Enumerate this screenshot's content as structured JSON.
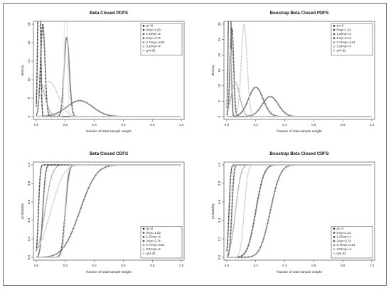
{
  "chart_data": [
    {
      "type": "line",
      "title": "Beta Closed PDFS",
      "xlabel": "fraction of total sample weight",
      "ylabel": "density",
      "xlim": [
        0,
        1
      ],
      "ylim": [
        0,
        25
      ],
      "xticks": [
        "0.0",
        "0.2",
        "0.4",
        "0.6",
        "0.8",
        "1.0"
      ],
      "yticks": [
        "0",
        "5",
        "10",
        "15",
        "20",
        "25"
      ],
      "legend_position": "top-right",
      "series": [
        {
          "name": "q<=0",
          "dist": "pdf",
          "mean": 0.02,
          "sd": 0.008,
          "peak": 60,
          "color": "#222222",
          "width": 1.4
        },
        {
          "name": "0<q<=1.23",
          "dist": "pdf",
          "mean": 0.045,
          "sd": 0.015,
          "peak": 25,
          "color": "#4a4a4a",
          "width": 1.6
        },
        {
          "name": "1.23<q<=2",
          "dist": "pdf",
          "mean": 0.21,
          "sd": 0.018,
          "peak": 21.5,
          "color": "#555555",
          "width": 1.8
        },
        {
          "name": "2<q<=2.74",
          "dist": "pdf",
          "mean": 0.3,
          "sd": 0.09,
          "peak": 4.3,
          "color": "#5a5a5a",
          "width": 1.8
        },
        {
          "name": "2.74<q<=3.24",
          "dist": "pdf",
          "mean": 0.015,
          "sd": 0.04,
          "peak": 10.5,
          "color": "#999999",
          "width": 1.4
        },
        {
          "name": "3.24<q<=4",
          "dist": "pdf",
          "mean": 0.09,
          "sd": 0.06,
          "peak": 9.5,
          "color": "#cccccc",
          "width": 1.6
        },
        {
          "name": "q>4.32",
          "dist": "pdf",
          "mean": 0.205,
          "sd": 0.008,
          "peak": 60,
          "color": "#e0e0e0",
          "width": 1.4
        }
      ]
    },
    {
      "type": "line",
      "title": "Boostrap Beta Closed PDFS",
      "xlabel": "fraction of total sample weight",
      "ylabel": "density",
      "xlim": [
        0,
        1
      ],
      "ylim": [
        0,
        30
      ],
      "xticks": [
        "0.0",
        "0.2",
        "0.4",
        "0.6",
        "0.8",
        "1.0"
      ],
      "yticks": [
        "0",
        "5",
        "10",
        "15",
        "20",
        "25",
        "30"
      ],
      "legend_position": "top-right",
      "series": [
        {
          "name": "q<=0",
          "dist": "pdf",
          "mean": 0.02,
          "sd": 0.008,
          "peak": 60,
          "color": "#222222",
          "width": 1.4
        },
        {
          "name": "0<q<=1.23",
          "dist": "pdf",
          "mean": 0.035,
          "sd": 0.012,
          "peak": 29,
          "color": "#4a4a4a",
          "width": 1.6
        },
        {
          "name": "1.23<q<=2",
          "dist": "pdf",
          "mean": 0.2,
          "sd": 0.05,
          "peak": 9.5,
          "color": "#4f4f4f",
          "width": 1.8
        },
        {
          "name": "2<q<=2.74",
          "dist": "pdf",
          "mean": 0.3,
          "sd": 0.055,
          "peak": 6.5,
          "color": "#5a5a5a",
          "width": 1.8
        },
        {
          "name": "2.74<q<=3.24",
          "dist": "pdf",
          "mean": 0.06,
          "sd": 0.03,
          "peak": 11,
          "color": "#999999",
          "width": 1.4
        },
        {
          "name": "3.24<q<=4",
          "dist": "pdf",
          "mean": 0.12,
          "sd": 0.02,
          "peak": 30,
          "color": "#cccccc",
          "width": 1.6
        },
        {
          "name": "q>4.32",
          "dist": "pdf",
          "mean": 0.025,
          "sd": 0.012,
          "peak": 22,
          "color": "#e0e0e0",
          "width": 1.4
        }
      ]
    },
    {
      "type": "line",
      "title": "Beta Closed CDFS",
      "xlabel": "fraction of total sample weight",
      "ylabel": "probability",
      "xlim": [
        0,
        1
      ],
      "ylim": [
        0,
        1
      ],
      "xticks": [
        "0.0",
        "0.2",
        "0.4",
        "0.6",
        "0.8",
        "1.0"
      ],
      "yticks": [
        "0.0",
        "0.2",
        "0.4",
        "0.6",
        "0.8",
        "1.0"
      ],
      "legend_position": "bottom-right",
      "series": [
        {
          "name": "q<=0",
          "dist": "cdf",
          "mean": 0.015,
          "sd": 0.01,
          "color": "#222222",
          "width": 1.4
        },
        {
          "name": "0<q<=1.23",
          "dist": "cdf",
          "mean": 0.045,
          "sd": 0.015,
          "color": "#4a4a4a",
          "width": 1.6
        },
        {
          "name": "1.23<q<=2",
          "dist": "cdf",
          "mean": 0.2,
          "sd": 0.02,
          "color": "#444444",
          "width": 1.8
        },
        {
          "name": "2<q<=2.74",
          "dist": "cdf",
          "mean": 0.3,
          "sd": 0.09,
          "color": "#5a5a5a",
          "width": 1.8
        },
        {
          "name": "2.74<q<=3.24",
          "dist": "cdf",
          "mean": 0.06,
          "sd": 0.04,
          "color": "#999999",
          "width": 1.4
        },
        {
          "name": "3.24<q<=4",
          "dist": "cdf",
          "mean": 0.1,
          "sd": 0.07,
          "color": "#cccccc",
          "width": 1.6
        },
        {
          "name": "q>4.32",
          "dist": "cdf",
          "mean": 0.2,
          "sd": 0.012,
          "color": "#e0e0e0",
          "width": 1.4
        }
      ]
    },
    {
      "type": "line",
      "title": "Boostrap Beta Closed CDFS",
      "xlabel": "fraction of total sample weight",
      "ylabel": "probability",
      "xlim": [
        0,
        1
      ],
      "ylim": [
        0,
        1
      ],
      "xticks": [
        "0.0",
        "0.2",
        "0.4",
        "0.6",
        "0.8",
        "1.0"
      ],
      "yticks": [
        "0.0",
        "0.2",
        "0.4",
        "0.6",
        "0.8",
        "1.0"
      ],
      "legend_position": "bottom-right",
      "series": [
        {
          "name": "q<=0",
          "dist": "cdf",
          "mean": 0.015,
          "sd": 0.01,
          "color": "#222222",
          "width": 1.4
        },
        {
          "name": "0<q<=1.23",
          "dist": "cdf",
          "mean": 0.035,
          "sd": 0.012,
          "color": "#4a4a4a",
          "width": 1.6
        },
        {
          "name": "1.23<q<=2",
          "dist": "cdf",
          "mean": 0.2,
          "sd": 0.045,
          "color": "#444444",
          "width": 1.8
        },
        {
          "name": "2<q<=2.74",
          "dist": "cdf",
          "mean": 0.3,
          "sd": 0.055,
          "color": "#5a5a5a",
          "width": 1.8
        },
        {
          "name": "2.74<q<=3.24",
          "dist": "cdf",
          "mean": 0.06,
          "sd": 0.03,
          "color": "#999999",
          "width": 1.4
        },
        {
          "name": "3.24<q<=4",
          "dist": "cdf",
          "mean": 0.12,
          "sd": 0.02,
          "color": "#cccccc",
          "width": 1.6
        },
        {
          "name": "q>4.32",
          "dist": "cdf",
          "mean": 0.025,
          "sd": 0.012,
          "color": "#e0e0e0",
          "width": 1.4
        }
      ]
    }
  ]
}
